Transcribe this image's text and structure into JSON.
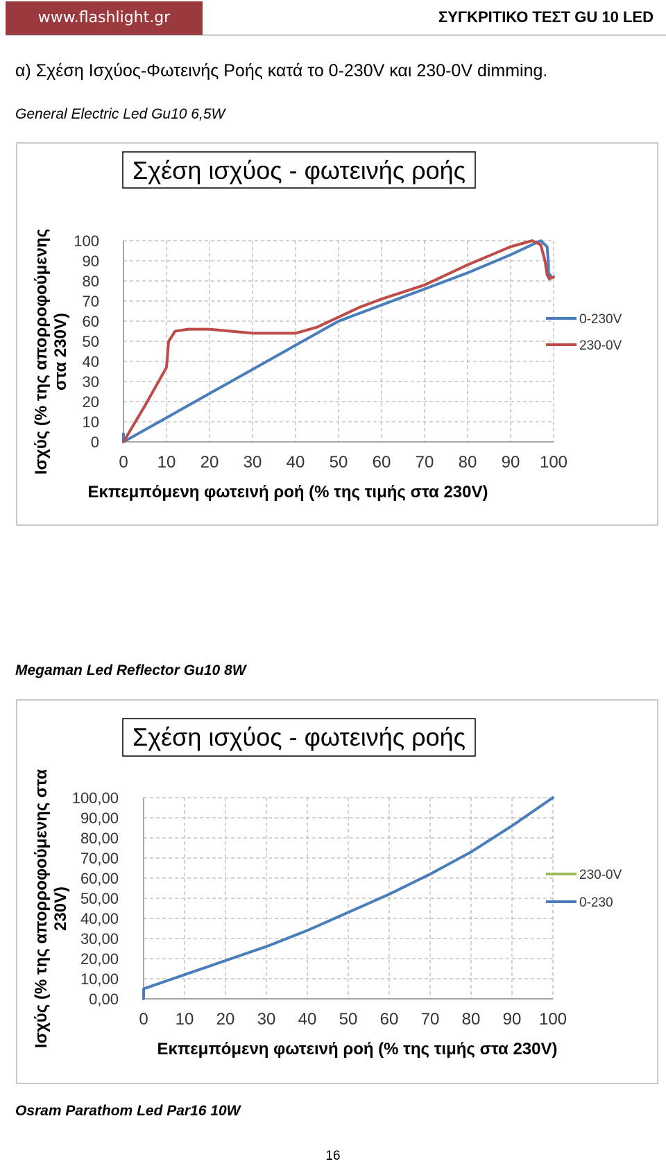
{
  "header": {
    "site": "www.flashlight.gr",
    "title": "ΣΥΓΚΡΙΤΙΚΟ ΤΕΣΤ GU 10 LED"
  },
  "section_title": "α) Σχέση Ισχύος-Φωτεινής Ροής κατά το 0-230V και 230-0V dimming.",
  "products": {
    "p1": "General Electric  Led Gu10 6,5W",
    "p2": "Megaman Led Reflector Gu10 8W",
    "p3": "Osram Parathom Led Par16 10W"
  },
  "page_number": "16",
  "colors": {
    "blue": "#4a7ebb",
    "red": "#be4b48",
    "green": "#9bbb59",
    "grid": "#a6a6a6",
    "header_bg": "#9b3a3e"
  },
  "chart_data": [
    {
      "type": "line",
      "title": "Σχέση ισχύος - φωτεινής ροής",
      "xlabel": "Εκπεμπόμενη φωτεινή ροή (% της τιμής στα 230V)",
      "ylabel": [
        "Ισχύς (% της απορροφούμενης",
        "στα 230V)"
      ],
      "xlim": [
        0,
        100
      ],
      "ylim": [
        0,
        100
      ],
      "xticks": [
        "0",
        "10",
        "20",
        "30",
        "40",
        "50",
        "60",
        "70",
        "80",
        "90",
        "100"
      ],
      "yticks": [
        "0",
        "10",
        "20",
        "30",
        "40",
        "50",
        "60",
        "70",
        "80",
        "90",
        "100"
      ],
      "grid": true,
      "legend_position": "right",
      "series": [
        {
          "name": "0-230V",
          "color": "#4a7ebb",
          "x": [
            0,
            0,
            10,
            20,
            30,
            40,
            50,
            60,
            70,
            80,
            90,
            97,
            98.5,
            98.8,
            98.8,
            99.5
          ],
          "y": [
            4,
            0,
            12,
            24,
            36,
            48,
            60,
            68,
            76,
            84,
            93,
            100,
            97,
            88,
            84,
            82
          ]
        },
        {
          "name": "230-0V",
          "color": "#be4b48",
          "x": [
            0,
            5,
            10,
            10.5,
            12,
            15,
            20,
            30,
            40,
            45,
            50,
            55,
            60,
            70,
            80,
            90,
            95,
            97,
            98,
            98.5,
            99,
            100
          ],
          "y": [
            0,
            18,
            37,
            50,
            55,
            56,
            56,
            54,
            54,
            57,
            62,
            67,
            71,
            78,
            88,
            97,
            100,
            98,
            90,
            83,
            81,
            82
          ]
        }
      ]
    },
    {
      "type": "line",
      "title": "Σχέση ισχύος - φωτεινής ροής",
      "xlabel": "Εκπεμπόμενη φωτεινή ροή (% της τιμής στα 230V)",
      "ylabel": [
        "Ισχύς (% της απορροφούμενης στα",
        "230V)"
      ],
      "xlim": [
        0,
        100
      ],
      "ylim": [
        0,
        100
      ],
      "xticks": [
        "0",
        "10",
        "20",
        "30",
        "40",
        "50",
        "60",
        "70",
        "80",
        "90",
        "100"
      ],
      "yticks": [
        "0,00",
        "10,00",
        "20,00",
        "30,00",
        "40,00",
        "50,00",
        "60,00",
        "70,00",
        "80,00",
        "90,00",
        "100,00"
      ],
      "grid": true,
      "legend_position": "right",
      "series": [
        {
          "name": "230-0V",
          "color": "#9bbb59",
          "x": [],
          "y": []
        },
        {
          "name": "0-230",
          "color": "#4a7ebb",
          "x": [
            0,
            0,
            10,
            20,
            30,
            40,
            50,
            60,
            70,
            80,
            90,
            100
          ],
          "y": [
            0,
            5,
            12,
            19,
            26,
            34,
            43,
            52,
            62,
            73,
            86,
            100
          ]
        }
      ]
    }
  ]
}
